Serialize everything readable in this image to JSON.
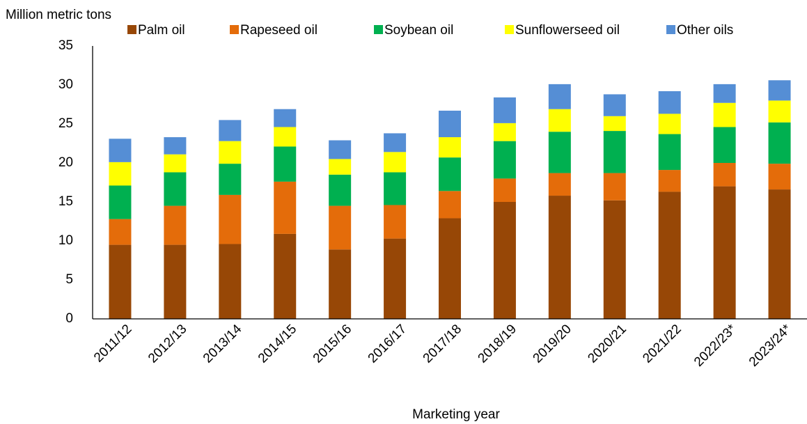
{
  "chart_data": {
    "type": "stacked_bar",
    "y_axis_label": "Million metric tons",
    "x_axis_label": "Marketing year",
    "categories": [
      "2011/12",
      "2012/13",
      "2013/14",
      "2014/15",
      "2015/16",
      "2016/17",
      "2017/18",
      "2018/19",
      "2019/20",
      "2020/21",
      "2021/22",
      "2022/23*",
      "2023/24*"
    ],
    "series": [
      {
        "name": "Palm oil",
        "color": "#974706",
        "values": [
          9.5,
          9.5,
          9.6,
          10.9,
          8.9,
          10.3,
          12.9,
          15.0,
          15.8,
          15.2,
          16.3,
          17.0,
          16.6
        ]
      },
      {
        "name": "Rapeseed oil",
        "color": "#e46c0a",
        "values": [
          3.3,
          5.0,
          6.3,
          6.7,
          5.6,
          4.3,
          3.5,
          3.0,
          2.9,
          3.5,
          2.8,
          3.0,
          3.3
        ]
      },
      {
        "name": "Soybean oil",
        "color": "#00b050",
        "values": [
          4.3,
          4.3,
          4.0,
          4.5,
          4.0,
          4.2,
          4.3,
          4.8,
          5.3,
          5.4,
          4.6,
          4.6,
          5.3
        ]
      },
      {
        "name": "Sunflowerseed oil",
        "color": "#ffff00",
        "values": [
          3.0,
          2.3,
          2.9,
          2.5,
          2.0,
          2.6,
          2.6,
          2.3,
          2.9,
          1.9,
          2.6,
          3.1,
          2.8
        ]
      },
      {
        "name": "Other oils",
        "color": "#558ed5",
        "values": [
          3.0,
          2.2,
          2.7,
          2.3,
          2.4,
          2.4,
          3.4,
          3.3,
          3.2,
          2.8,
          2.9,
          2.4,
          2.6
        ]
      }
    ],
    "ylim": [
      0,
      35
    ],
    "yticks": [
      0,
      5,
      10,
      15,
      20,
      25,
      30,
      35
    ],
    "grid": false,
    "legend": "top"
  }
}
